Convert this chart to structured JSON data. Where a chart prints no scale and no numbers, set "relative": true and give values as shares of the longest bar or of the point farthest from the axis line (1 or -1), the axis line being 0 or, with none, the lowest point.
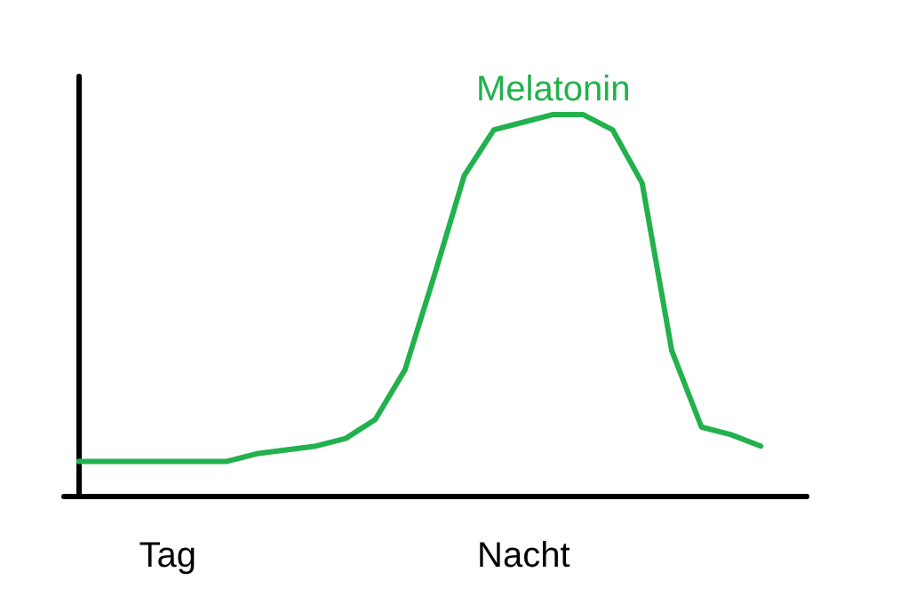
{
  "chart_data": {
    "type": "line",
    "relative": true,
    "categories": [
      null,
      null,
      null,
      "Tag",
      null,
      null,
      null,
      null,
      null,
      null,
      null,
      null,
      null,
      null,
      null,
      "Nacht",
      null,
      null,
      null,
      null,
      null,
      null,
      null,
      null
    ],
    "series": [
      {
        "name": "Melatonin",
        "color": "#22b14c",
        "values": [
          0.09,
          0.09,
          0.09,
          0.09,
          0.09,
          0.09,
          0.11,
          0.12,
          0.13,
          0.15,
          0.2,
          0.33,
          0.58,
          0.84,
          0.96,
          0.98,
          1,
          1,
          0.96,
          0.82,
          0.38,
          0.18,
          0.16,
          0.13
        ]
      }
    ],
    "marker": "none",
    "legend": false
  }
}
